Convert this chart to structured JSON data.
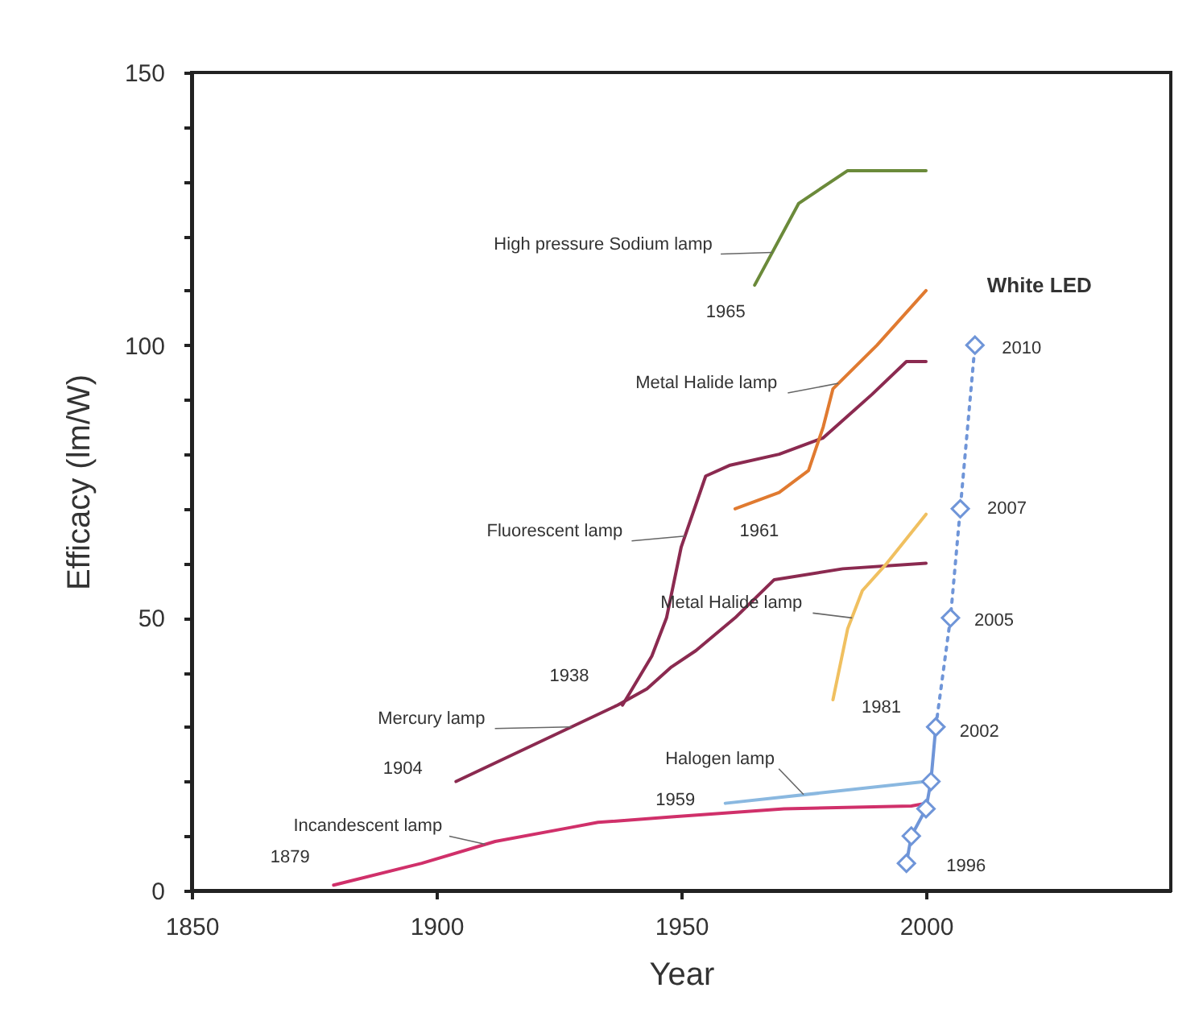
{
  "chart_data": {
    "type": "line",
    "xlabel": "Year",
    "ylabel": "Efficacy (lm/W)",
    "xlim": [
      1850,
      2050
    ],
    "xticks": [
      1850,
      1900,
      1950,
      2000
    ],
    "ylim": [
      0,
      150
    ],
    "yticks": [
      0,
      {
        "value": 10,
        "label": null
      },
      {
        "value": 20,
        "label": null
      },
      {
        "value": 30,
        "label": null
      },
      {
        "value": 40,
        "label": null
      },
      50,
      {
        "value": 60,
        "label": null
      },
      {
        "value": 70,
        "label": null
      },
      {
        "value": 80,
        "label": null
      },
      {
        "value": 90,
        "label": null
      },
      100,
      {
        "value": 110,
        "label": null
      },
      {
        "value": 120,
        "label": null
      },
      {
        "value": 130,
        "label": null
      },
      {
        "value": 140,
        "label": null
      },
      150
    ],
    "grid": false,
    "series": [
      {
        "color": "#d0306a",
        "x": [
          1879,
          1897,
          1912,
          1927,
          1933,
          1948,
          1971,
          1997,
          2000
        ],
        "values": [
          1,
          5,
          9,
          11.5,
          12.5,
          13.5,
          15,
          15.5,
          16
        ]
      },
      {
        "color": "#8ab8e0",
        "x": [
          1959,
          2000
        ],
        "values": [
          16,
          20
        ]
      },
      {
        "color": "#8b2a50",
        "x": [
          1904,
          1937,
          1943,
          1948,
          1953,
          1961,
          1969,
          1983,
          2000
        ],
        "values": [
          20,
          34,
          37,
          41,
          44,
          50,
          57,
          59,
          60
        ]
      },
      {
        "color": "#8b2a50",
        "x": [
          1938,
          1944,
          1947,
          1950,
          1955,
          1960,
          1970,
          1979,
          1989,
          1996,
          2000
        ],
        "values": [
          34,
          43,
          50,
          63,
          76,
          78,
          80,
          83,
          91,
          97,
          97
        ]
      },
      {
        "color": "#e07a30",
        "x": [
          1961,
          1970,
          1976,
          1979,
          1981,
          1990,
          2000
        ],
        "values": [
          70,
          73,
          77,
          85,
          92,
          100,
          110
        ]
      },
      {
        "color": "#f0c060",
        "x": [
          1981,
          1984,
          1987,
          1992,
          2000
        ],
        "values": [
          35,
          48,
          55,
          60,
          69
        ]
      },
      {
        "color": "#6b8a3a",
        "x": [
          1965,
          1974,
          1984,
          2000
        ],
        "values": [
          111,
          126,
          132,
          132
        ]
      },
      {
        "color": "#6f95d8",
        "marker": "diamond",
        "line_style": "solid",
        "x": [
          1996,
          1997,
          2000,
          2001,
          2002
        ],
        "values": [
          5,
          10,
          15,
          20,
          30
        ]
      },
      {
        "color": "#6f95d8",
        "marker": "diamond",
        "line_style": "dotted",
        "x": [
          2002,
          2005,
          2007,
          2010
        ],
        "values": [
          30,
          50,
          70,
          100
        ]
      }
    ],
    "annotations": [
      {
        "text": "High pressure Sodium lamp",
        "x": 1968.6,
        "y": 117
      },
      {
        "text": "1965",
        "x": 1965,
        "y": 111
      },
      {
        "text": "Metal Halide lamp",
        "x": 1982.1,
        "y": 93
      },
      {
        "text": "1961",
        "x": 1961,
        "y": 70
      },
      {
        "text": "Fluorescent lamp",
        "x": 1950.8,
        "y": 65
      },
      {
        "text": "Metal Halide lamp",
        "x": 1984.9,
        "y": 50
      },
      {
        "text": "1938",
        "x": 1938,
        "y": 34
      },
      {
        "text": "Mercury  lamp",
        "x": 1927.6,
        "y": 30
      },
      {
        "text": "1904",
        "x": 1904,
        "y": 20
      },
      {
        "text": "1981",
        "x": 1981,
        "y": 35
      },
      {
        "text": "Halogen lamp",
        "x": 1975,
        "y": 17.6
      },
      {
        "text": "1959",
        "x": 1959,
        "y": 16
      },
      {
        "text": "Incandescent lamp",
        "x": 1910,
        "y": 8.5
      },
      {
        "text": "1879",
        "x": 1879,
        "y": 1
      },
      {
        "text": "White LED",
        "x": 2010,
        "y": 100
      },
      {
        "text": "2010",
        "x": 2010,
        "y": 100
      },
      {
        "text": "2007",
        "x": 2007,
        "y": 70
      },
      {
        "text": "2005",
        "x": 2005,
        "y": 50
      },
      {
        "text": "2002",
        "x": 2002,
        "y": 30
      },
      {
        "text": "1996",
        "x": 1996,
        "y": 5
      }
    ]
  }
}
